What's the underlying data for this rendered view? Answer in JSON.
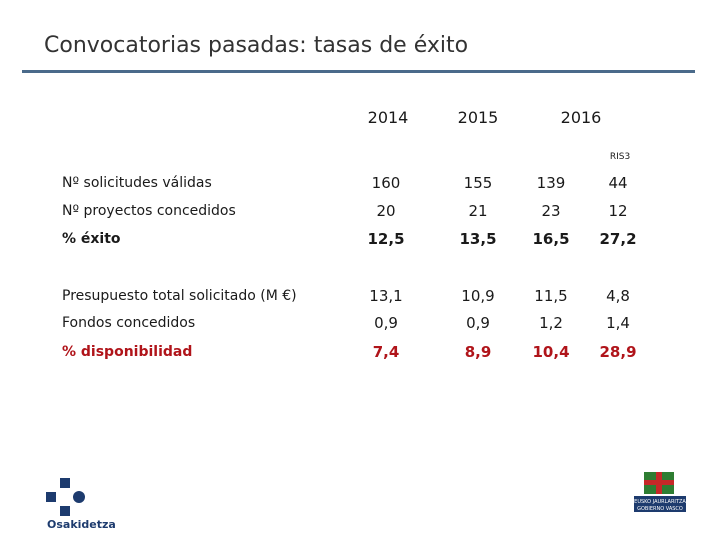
{
  "header": {
    "title": "Convocatorias pasadas: tasas de éxito"
  },
  "table": {
    "years": [
      "2014",
      "2015",
      "2016"
    ],
    "subheader": "RIS3",
    "rows": [
      {
        "label": "Nº solicitudes válidas",
        "cells": [
          "160",
          "155",
          "139",
          "44"
        ]
      },
      {
        "label": "Nº proyectos concedidos",
        "cells": [
          "20",
          "21",
          "23",
          "12"
        ]
      },
      {
        "label": "% éxito",
        "cells": [
          "12,5",
          "13,5",
          "16,5",
          "27,2"
        ]
      },
      {
        "label": "Presupuesto total solicitado (M €)",
        "cells": [
          "13,1",
          "10,9",
          "11,5",
          "4,8"
        ]
      },
      {
        "label": "Fondos concedidos",
        "cells": [
          "0,9",
          "0,9",
          "1,2",
          "1,4"
        ]
      },
      {
        "label": "% disponibilidad",
        "cells": [
          "7,4",
          "8,9",
          "10,4",
          "28,9"
        ]
      }
    ]
  },
  "footer": {
    "left_logo": "Osakidetza",
    "right_logo": [
      "EUSKO JAURLARITZA",
      "GOBIERNO VASCO"
    ]
  }
}
